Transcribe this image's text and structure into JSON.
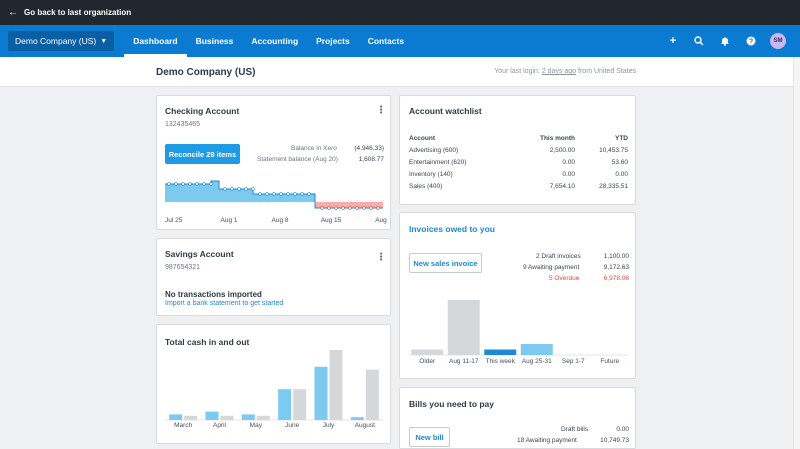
{
  "topbar": {
    "back_label": "Go back to last organization"
  },
  "nav": {
    "org_name": "Demo Company (US)",
    "tabs": [
      "Dashboard",
      "Business",
      "Accounting",
      "Projects",
      "Contacts"
    ],
    "avatar_initials": "SM"
  },
  "subheader": {
    "company": "Demo Company (US)",
    "login_prefix": "Your last login:",
    "login_time": "2 days ago",
    "login_suffix": "from United States"
  },
  "checking": {
    "title": "Checking Account",
    "number": "132435465",
    "reconcile_label": "Reconcile 29 items",
    "balance_xero_label": "Balance in Xero",
    "balance_xero_value": "(4,946.33)",
    "statement_label": "Statement balance (Aug 20)",
    "statement_value": "1,608.77",
    "x_labels": [
      "Jul 25",
      "Aug 1",
      "Aug 8",
      "Aug 15",
      "Aug"
    ]
  },
  "savings": {
    "title": "Savings Account",
    "number": "987654321",
    "status": "No transactions imported",
    "import_link": "Import a bank statement to get started"
  },
  "cash": {
    "title": "Total cash in and out",
    "months": [
      "March",
      "April",
      "May",
      "June",
      "July",
      "August"
    ],
    "cash_in": [
      2,
      3,
      2,
      11,
      19,
      1
    ],
    "cash_out": [
      1.5,
      1.5,
      1.5,
      11,
      25,
      18
    ],
    "colors": {
      "in": "#7ccaf0",
      "out": "#d5d8db"
    }
  },
  "watchlist": {
    "title": "Account watchlist",
    "headers": [
      "Account",
      "This month",
      "YTD"
    ],
    "rows": [
      [
        "Advertising (600)",
        "2,500.00",
        "10,453.75"
      ],
      [
        "Entertainment (620)",
        "0.00",
        "53.60"
      ],
      [
        "Inventory (140)",
        "0.00",
        "0.00"
      ],
      [
        "Sales (400)",
        "7,654.10",
        "28,335.51"
      ]
    ]
  },
  "invoices": {
    "title": "Invoices owed to you",
    "new_label": "New sales invoice",
    "draft_label": "2 Draft invoices",
    "draft_value": "1,100.00",
    "awaiting_label": "9 Awaiting payment",
    "awaiting_value": "9,172.63",
    "overdue_label": "5 Overdue",
    "overdue_value": "6,978.08",
    "bar_labels": [
      "Older",
      "Aug 11-17",
      "This week",
      "Aug 25-31",
      "Sep 1-7",
      "Future"
    ],
    "bar_values": [
      1,
      10,
      1,
      2,
      0,
      0
    ],
    "colors": {
      "grey": "#d5d8db",
      "blue": "#7ccaf0",
      "dark_blue": "#1f88d6",
      "overdue": "#e8483a"
    }
  },
  "bills": {
    "title": "Bills you need to pay",
    "new_label": "New bill",
    "draft_label": "Draft bills",
    "draft_value": "0.00",
    "awaiting_label": "18 Awaiting payment",
    "awaiting_value": "10,749.73"
  }
}
